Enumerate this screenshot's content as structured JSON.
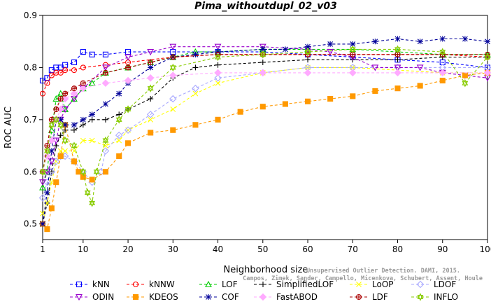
{
  "chart_data": {
    "type": "line",
    "title": "Pima_withoutdupl_02_v03",
    "xlabel": "Neighborhood size",
    "ylabel": "ROC AUC",
    "xlim": [
      1,
      100
    ],
    "ylim": [
      0.47,
      0.9
    ],
    "xticks": [
      1,
      10,
      20,
      30,
      40,
      50,
      60,
      70,
      80,
      90,
      100
    ],
    "yticks": [
      0.5,
      0.6,
      0.7,
      0.8,
      0.9
    ],
    "grid": false,
    "legend_position": "bottom",
    "watermark": [
      "Campos, Zimek, Sander, Campello, Micenkova, Schubert, Assent, Houle",
      "Unsupervised Outlier Detection. DAMI, 2015."
    ],
    "series": [
      {
        "name": "kNN",
        "color": "#0000ff",
        "marker": "square",
        "line": "dashed",
        "x": [
          1,
          2,
          3,
          4,
          5,
          6,
          8,
          10,
          12,
          15,
          20,
          30,
          40,
          50,
          60,
          70,
          80,
          90,
          100
        ],
        "y": [
          0.775,
          0.78,
          0.795,
          0.8,
          0.8,
          0.805,
          0.81,
          0.83,
          0.825,
          0.825,
          0.83,
          0.83,
          0.83,
          0.83,
          0.825,
          0.82,
          0.815,
          0.81,
          0.8
        ]
      },
      {
        "name": "kNNW",
        "color": "#ff0000",
        "marker": "circle",
        "line": "dashed",
        "x": [
          1,
          2,
          3,
          4,
          5,
          6,
          8,
          10,
          15,
          20,
          30,
          40,
          50,
          60,
          70,
          80,
          90,
          100
        ],
        "y": [
          0.75,
          0.77,
          0.785,
          0.79,
          0.79,
          0.795,
          0.795,
          0.8,
          0.805,
          0.81,
          0.82,
          0.825,
          0.825,
          0.825,
          0.825,
          0.825,
          0.825,
          0.82
        ]
      },
      {
        "name": "LOF",
        "color": "#00cc00",
        "marker": "triangle",
        "line": "dashed",
        "x": [
          1,
          2,
          3,
          4,
          5,
          6,
          8,
          10,
          12,
          15,
          20,
          25,
          30,
          35,
          40,
          50,
          60,
          70,
          80,
          90,
          100
        ],
        "y": [
          0.57,
          0.6,
          0.68,
          0.74,
          0.75,
          0.72,
          0.74,
          0.76,
          0.77,
          0.79,
          0.8,
          0.81,
          0.82,
          0.83,
          0.83,
          0.835,
          0.835,
          0.835,
          0.83,
          0.825,
          0.825
        ]
      },
      {
        "name": "SimplifiedLOF",
        "color": "#000000",
        "marker": "plus",
        "line": "dashed",
        "x": [
          1,
          2,
          3,
          4,
          5,
          6,
          8,
          10,
          12,
          15,
          18,
          20,
          25,
          30,
          35,
          40,
          50,
          60,
          70,
          80,
          90,
          100
        ],
        "y": [
          0.5,
          0.54,
          0.6,
          0.65,
          0.67,
          0.68,
          0.68,
          0.69,
          0.7,
          0.7,
          0.71,
          0.72,
          0.74,
          0.78,
          0.8,
          0.805,
          0.81,
          0.815,
          0.815,
          0.815,
          0.82,
          0.82
        ]
      },
      {
        "name": "LoOP",
        "color": "#ffff00",
        "marker": "x",
        "line": "dashed",
        "x": [
          1,
          2,
          3,
          4,
          5,
          6,
          8,
          10,
          12,
          15,
          18,
          20,
          25,
          30,
          35,
          40,
          50,
          60,
          70,
          80,
          90,
          100
        ],
        "y": [
          0.52,
          0.54,
          0.58,
          0.62,
          0.64,
          0.64,
          0.64,
          0.66,
          0.66,
          0.65,
          0.66,
          0.68,
          0.7,
          0.72,
          0.75,
          0.77,
          0.79,
          0.8,
          0.8,
          0.795,
          0.79,
          0.79
        ]
      },
      {
        "name": "LDOF",
        "color": "#aaaaff",
        "marker": "diamond",
        "line": "dashed",
        "x": [
          1,
          2,
          3,
          4,
          5,
          6,
          8,
          10,
          12,
          14,
          15,
          18,
          20,
          25,
          30,
          35,
          40,
          50,
          60,
          70,
          80,
          90,
          100
        ],
        "y": [
          0.55,
          0.58,
          0.6,
          0.62,
          0.63,
          0.63,
          0.62,
          0.6,
          0.58,
          0.6,
          0.64,
          0.67,
          0.68,
          0.71,
          0.74,
          0.76,
          0.78,
          0.79,
          0.8,
          0.8,
          0.8,
          0.8,
          0.8
        ]
      },
      {
        "name": "ODIN",
        "color": "#9900cc",
        "marker": "triangle-down",
        "line": "dashed",
        "x": [
          1,
          2,
          3,
          4,
          5,
          6,
          8,
          10,
          15,
          20,
          25,
          30,
          40,
          50,
          60,
          65,
          70,
          75,
          80,
          85,
          90,
          95,
          100
        ],
        "y": [
          0.58,
          0.6,
          0.62,
          0.66,
          0.7,
          0.72,
          0.74,
          0.76,
          0.8,
          0.82,
          0.83,
          0.84,
          0.84,
          0.84,
          0.835,
          0.83,
          0.82,
          0.8,
          0.8,
          0.8,
          0.79,
          0.785,
          0.78
        ]
      },
      {
        "name": "KDEOS",
        "color": "#ff9900",
        "marker": "square-filled",
        "line": "dashed",
        "x": [
          1,
          2,
          3,
          4,
          5,
          6,
          8,
          9,
          10,
          12,
          15,
          18,
          20,
          25,
          30,
          35,
          40,
          45,
          50,
          55,
          60,
          65,
          70,
          75,
          80,
          85,
          90,
          95,
          100
        ],
        "y": [
          0.5,
          0.49,
          0.53,
          0.58,
          0.63,
          0.69,
          0.62,
          0.6,
          0.59,
          0.585,
          0.6,
          0.63,
          0.655,
          0.675,
          0.68,
          0.69,
          0.7,
          0.715,
          0.725,
          0.73,
          0.735,
          0.74,
          0.745,
          0.755,
          0.76,
          0.765,
          0.775,
          0.785,
          0.79
        ]
      },
      {
        "name": "COF",
        "color": "#000099",
        "marker": "asterisk",
        "line": "dashed",
        "x": [
          1,
          2,
          3,
          4,
          5,
          6,
          8,
          10,
          12,
          15,
          18,
          20,
          25,
          30,
          35,
          40,
          50,
          55,
          60,
          65,
          70,
          75,
          80,
          85,
          90,
          95,
          100
        ],
        "y": [
          0.5,
          0.56,
          0.64,
          0.7,
          0.7,
          0.69,
          0.69,
          0.7,
          0.71,
          0.73,
          0.75,
          0.77,
          0.8,
          0.82,
          0.825,
          0.83,
          0.835,
          0.835,
          0.84,
          0.845,
          0.845,
          0.85,
          0.855,
          0.85,
          0.855,
          0.855,
          0.85
        ]
      },
      {
        "name": "FastABOD",
        "color": "#ffaaff",
        "marker": "diamond-filled",
        "line": "dashed",
        "x": [
          1,
          2,
          3,
          4,
          5,
          6,
          8,
          10,
          15,
          20,
          25,
          30,
          40,
          50,
          60,
          70,
          80,
          90,
          100
        ],
        "y": [
          0.6,
          0.63,
          0.66,
          0.7,
          0.72,
          0.74,
          0.75,
          0.76,
          0.77,
          0.775,
          0.78,
          0.785,
          0.79,
          0.79,
          0.79,
          0.79,
          0.79,
          0.79,
          0.79
        ]
      },
      {
        "name": "LDF",
        "color": "#aa0000",
        "marker": "circle-plus",
        "line": "dashed",
        "x": [
          1,
          2,
          3,
          4,
          5,
          6,
          8,
          10,
          15,
          20,
          25,
          30,
          40,
          50,
          60,
          70,
          80,
          90,
          100
        ],
        "y": [
          0.6,
          0.65,
          0.7,
          0.72,
          0.74,
          0.75,
          0.76,
          0.77,
          0.79,
          0.8,
          0.81,
          0.82,
          0.825,
          0.825,
          0.825,
          0.825,
          0.825,
          0.825,
          0.825
        ]
      },
      {
        "name": "INFLO",
        "color": "#88cc00",
        "marker": "hexstar",
        "line": "dashed",
        "x": [
          1,
          2,
          3,
          4,
          5,
          6,
          8,
          10,
          11,
          12,
          13,
          15,
          18,
          20,
          25,
          30,
          40,
          50,
          60,
          70,
          80,
          90,
          95,
          100
        ],
        "y": [
          0.6,
          0.64,
          0.69,
          0.7,
          0.69,
          0.66,
          0.65,
          0.6,
          0.56,
          0.54,
          0.6,
          0.66,
          0.7,
          0.72,
          0.76,
          0.8,
          0.82,
          0.825,
          0.83,
          0.835,
          0.835,
          0.83,
          0.77,
          0.82
        ]
      }
    ]
  }
}
